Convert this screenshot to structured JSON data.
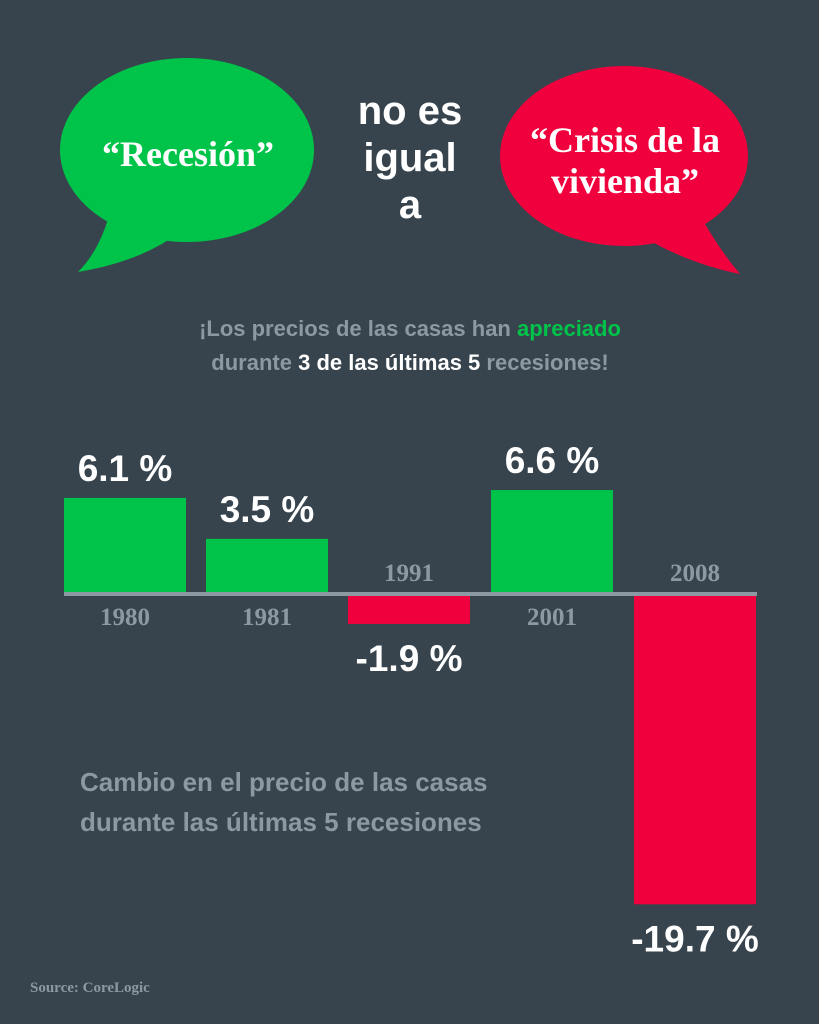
{
  "bubbles": {
    "left": {
      "text": "“Recesión”",
      "color": "#00c34a"
    },
    "right": {
      "line1": "“Crisis de la",
      "line2": "vivienda”",
      "color": "#f0003c"
    }
  },
  "middle": {
    "line1": "no es",
    "line2": "igual",
    "line3": "a"
  },
  "subtitle": {
    "part1": "¡Los precios de las casas han ",
    "highlight": "apreciado",
    "part2": "durante ",
    "bold": "3 de las últimas 5",
    "part3": " recesiones!"
  },
  "chart_data": {
    "type": "bar",
    "categories": [
      "1980",
      "1981",
      "1991",
      "2001",
      "2008"
    ],
    "values": [
      6.1,
      3.5,
      -1.9,
      6.6,
      -19.7
    ],
    "value_labels": [
      "6.1 %",
      "3.5 %",
      "-1.9 %",
      "6.6 %",
      "-19.7 %"
    ],
    "positive_color": "#00c34a",
    "negative_color": "#f0003c",
    "axis_color": "#8c98a2",
    "title": "Cambio en el precio de las casas durante las últimas 5 recesiones"
  },
  "caption": {
    "line1": "Cambio en el precio de las casas",
    "line2": "durante las últimas 5 recesiones"
  },
  "source": "Source: CoreLogic"
}
